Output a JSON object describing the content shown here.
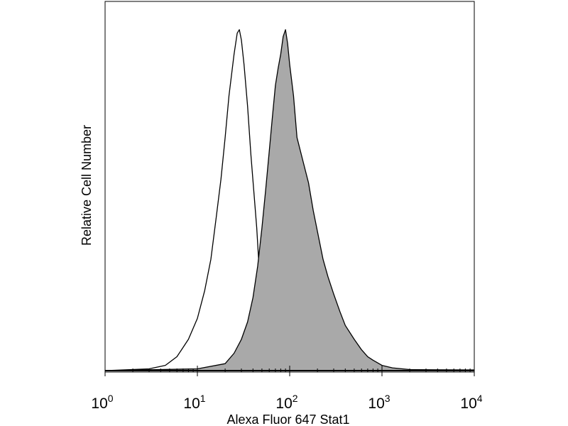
{
  "chart_data": {
    "type": "area",
    "title": "",
    "xlabel": "Alexa Fluor 647 Stat1",
    "ylabel": "Relative Cell Number",
    "xscale": "log",
    "xlim": [
      1,
      10000
    ],
    "ylim": [
      0,
      100
    ],
    "x_ticks": [
      {
        "base": "10",
        "exp": "0",
        "value": 1
      },
      {
        "base": "10",
        "exp": "1",
        "value": 10
      },
      {
        "base": "10",
        "exp": "2",
        "value": 100
      },
      {
        "base": "10",
        "exp": "3",
        "value": 1000
      },
      {
        "base": "10",
        "exp": "4",
        "value": 10000
      }
    ],
    "grid": false,
    "legend": "none",
    "series": [
      {
        "style": "outline",
        "stroke": "#000000",
        "fill": "none",
        "x": [
          1,
          3,
          4.5,
          6,
          8,
          10,
          12,
          14,
          16,
          18,
          20,
          22,
          25,
          27,
          28.5,
          30,
          32,
          35,
          38,
          41,
          44,
          47,
          50,
          55,
          60,
          70,
          80,
          100,
          150,
          300,
          1000,
          10000
        ],
        "y": [
          0,
          0.5,
          1.5,
          4,
          9,
          15,
          23,
          32,
          44,
          55,
          67,
          79,
          91,
          97,
          98,
          95,
          88,
          76,
          62,
          51,
          41,
          28,
          18,
          12,
          9,
          6,
          4,
          2,
          1,
          0.5,
          0.3,
          0.2
        ]
      },
      {
        "style": "filled",
        "stroke": "#000000",
        "fill": "#a9a9a9",
        "x": [
          1,
          10,
          20,
          25,
          30,
          35,
          40,
          45,
          50,
          55,
          60,
          65,
          70,
          75,
          80,
          85,
          90,
          95,
          100,
          110,
          120,
          140,
          160,
          180,
          200,
          230,
          260,
          300,
          350,
          400,
          500,
          600,
          700,
          800,
          1000,
          1300,
          2000,
          5000,
          10000
        ],
        "y": [
          0,
          0.5,
          2,
          5,
          9,
          14,
          21,
          30,
          41,
          52,
          63,
          73,
          82,
          87,
          91,
          96,
          98,
          94,
          88,
          79,
          67,
          60,
          54,
          46,
          40,
          32,
          27,
          22,
          17,
          13,
          9,
          6,
          4,
          3,
          1.5,
          0.8,
          0.3,
          0.1,
          0
        ]
      }
    ]
  }
}
